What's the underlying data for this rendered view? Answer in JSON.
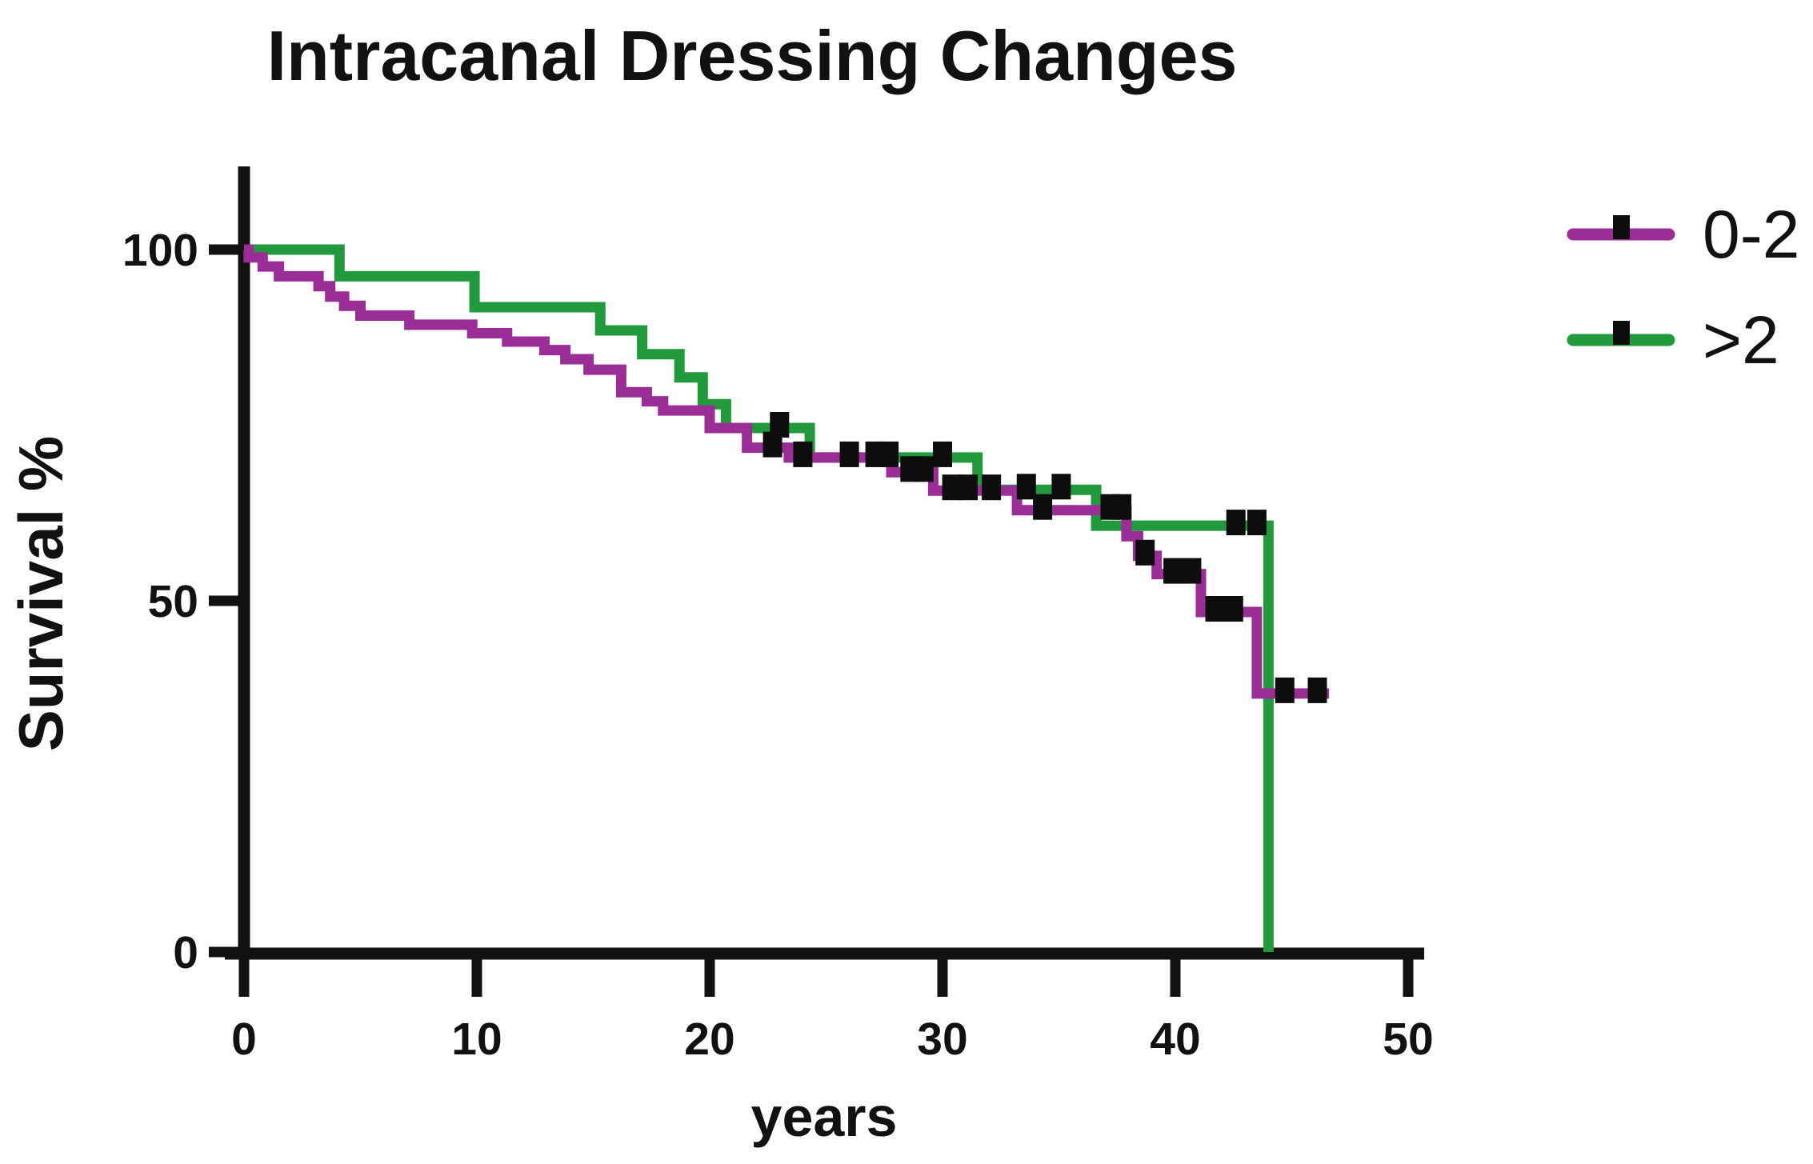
{
  "chart_data": {
    "type": "line",
    "chart_style": "kaplan-meier-step",
    "title": "Intracanal Dressing Changes",
    "xlabel": "years",
    "ylabel": "Survival %",
    "xlim": [
      0,
      50
    ],
    "ylim": [
      0,
      100
    ],
    "x_ticks": [
      0,
      10,
      20,
      30,
      40,
      50
    ],
    "y_ticks": [
      100,
      50,
      0
    ],
    "grid": false,
    "legend_position": "upper-right",
    "axis_color": "#111111",
    "censor_mark_color": "#0d0d0d",
    "series": [
      {
        "name": ">2",
        "color": "#23993E",
        "steps": [
          [
            0,
            100
          ],
          [
            4.1,
            96.2
          ],
          [
            9.9,
            91.8
          ],
          [
            15.3,
            88.5
          ],
          [
            17.1,
            85.1
          ],
          [
            18.7,
            81.8
          ],
          [
            19.7,
            78.0
          ],
          [
            20.7,
            74.6
          ],
          [
            24.3,
            70.4
          ],
          [
            31.5,
            65.8
          ],
          [
            36.6,
            60.7
          ]
        ],
        "end_year": 44.0,
        "drops_to_zero_at_end": true,
        "censor_marks": [
          [
            23.0,
            74.6
          ],
          [
            27.7,
            70.4
          ],
          [
            30.0,
            70.4
          ],
          [
            33.6,
            65.8
          ],
          [
            35.1,
            65.8
          ],
          [
            42.6,
            60.7
          ],
          [
            43.5,
            60.7
          ]
        ]
      },
      {
        "name": "0-2",
        "color": "#9B2D96",
        "steps": [
          [
            0,
            100
          ],
          [
            0.2,
            98.9
          ],
          [
            0.8,
            97.6
          ],
          [
            1.5,
            96.2
          ],
          [
            3.2,
            94.8
          ],
          [
            3.7,
            93.3
          ],
          [
            4.3,
            92.0
          ],
          [
            5.0,
            90.6
          ],
          [
            7.1,
            89.3
          ],
          [
            9.8,
            88.1
          ],
          [
            11.3,
            86.9
          ],
          [
            12.9,
            85.7
          ],
          [
            13.8,
            84.4
          ],
          [
            14.8,
            82.9
          ],
          [
            16.2,
            79.7
          ],
          [
            17.3,
            78.4
          ],
          [
            18.0,
            77.1
          ],
          [
            20.0,
            74.6
          ],
          [
            21.6,
            71.8
          ],
          [
            23.4,
            70.4
          ],
          [
            27.8,
            68.3
          ],
          [
            29.6,
            65.7
          ],
          [
            33.2,
            62.9
          ],
          [
            37.9,
            59.2
          ],
          [
            38.4,
            56.4
          ],
          [
            39.2,
            53.8
          ],
          [
            41.1,
            48.4
          ],
          [
            43.5,
            36.8
          ]
        ],
        "end_year": 46.6,
        "drops_to_zero_at_end": false,
        "censor_marks": [
          [
            22.7,
            71.8
          ],
          [
            24.0,
            70.4
          ],
          [
            26.0,
            70.4
          ],
          [
            27.1,
            70.4
          ],
          [
            28.6,
            68.3
          ],
          [
            29.2,
            68.3
          ],
          [
            30.4,
            65.7
          ],
          [
            31.1,
            65.7
          ],
          [
            32.1,
            65.7
          ],
          [
            34.3,
            62.9
          ],
          [
            37.2,
            62.9
          ],
          [
            37.7,
            62.9
          ],
          [
            38.7,
            56.4
          ],
          [
            39.9,
            53.8
          ],
          [
            40.7,
            53.8
          ],
          [
            41.7,
            48.4
          ],
          [
            42.5,
            48.4
          ],
          [
            44.7,
            36.8
          ],
          [
            46.1,
            36.8
          ]
        ]
      }
    ]
  }
}
